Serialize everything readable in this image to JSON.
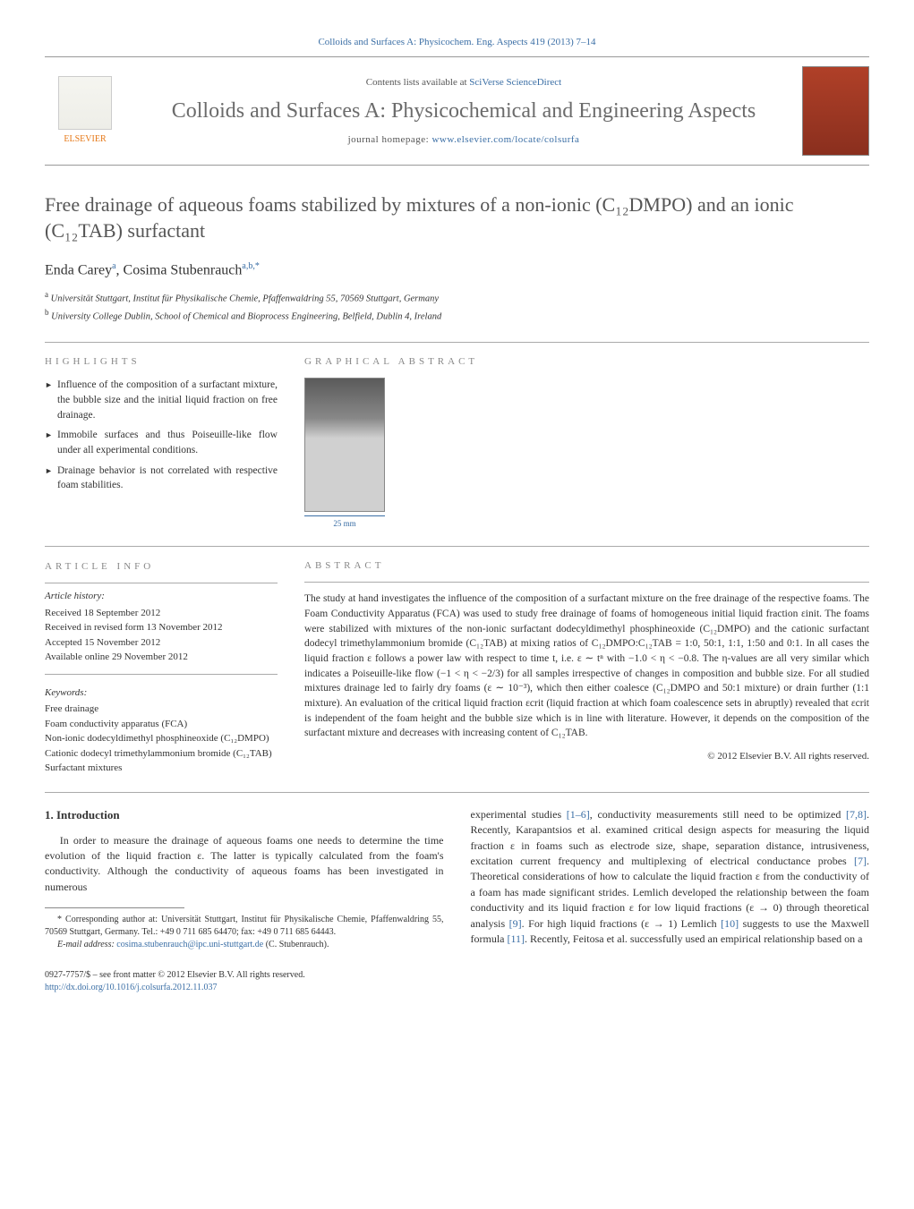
{
  "top_journal_line": "Colloids and Surfaces A: Physicochem. Eng. Aspects 419 (2013) 7–14",
  "header": {
    "contents_prefix": "Contents lists available at ",
    "contents_link": "SciVerse ScienceDirect",
    "journal_title": "Colloids and Surfaces A: Physicochemical and Engineering Aspects",
    "homepage_prefix": "journal homepage: ",
    "homepage_url": "www.elsevier.com/locate/colsurfa",
    "elsevier_label": "ELSEVIER"
  },
  "article_title": "Free drainage of aqueous foams stabilized by mixtures of a non-ionic (C₁₂DMPO) and an ionic (C₁₂TAB) surfactant",
  "authors_html": "Enda Carey",
  "author_a_sup": "a",
  "author_sep": ", ",
  "author2": "Cosima Stubenrauch",
  "author_b_sup": "a,b,*",
  "affiliations": {
    "a": "Universität Stuttgart, Institut für Physikalische Chemie, Pfaffenwaldring 55, 70569 Stuttgart, Germany",
    "b": "University College Dublin, School of Chemical and Bioprocess Engineering, Belfield, Dublin 4, Ireland"
  },
  "highlights_label": "HIGHLIGHTS",
  "highlights": [
    "Influence of the composition of a surfactant mixture, the bubble size and the initial liquid fraction on free drainage.",
    "Immobile surfaces and thus Poiseuille-like flow under all experimental conditions.",
    "Drainage behavior is not correlated with respective foam stabilities."
  ],
  "ga_label": "GRAPHICAL ABSTRACT",
  "ga_caption": "25 mm",
  "article_info_label": "ARTICLE INFO",
  "article_history_heading": "Article history:",
  "article_history": [
    "Received 18 September 2012",
    "Received in revised form 13 November 2012",
    "Accepted 15 November 2012",
    "Available online 29 November 2012"
  ],
  "keywords_heading": "Keywords:",
  "keywords": [
    "Free drainage",
    "Foam conductivity apparatus (FCA)",
    "Non-ionic dodecyldimethyl phosphineoxide (C₁₂DMPO)",
    "Cationic dodecyl trimethylammonium bromide (C₁₂TAB)",
    "Surfactant mixtures"
  ],
  "abstract_label": "ABSTRACT",
  "abstract_text": "The study at hand investigates the influence of the composition of a surfactant mixture on the free drainage of the respective foams. The Foam Conductivity Apparatus (FCA) was used to study free drainage of foams of homogeneous initial liquid fraction εinit. The foams were stabilized with mixtures of the non-ionic surfactant dodecyldimethyl phosphineoxide (C₁₂DMPO) and the cationic surfactant dodecyl trimethylammonium bromide (C₁₂TAB) at mixing ratios of C₁₂DMPO:C₁₂TAB = 1:0, 50:1, 1:1, 1:50 and 0:1. In all cases the liquid fraction ε follows a power law with respect to time t, i.e. ε ∼ tⁿ with −1.0 < η < −0.8. The η-values are all very similar which indicates a Poiseuille-like flow (−1 < η < −2/3) for all samples irrespective of changes in composition and bubble size. For all studied mixtures drainage led to fairly dry foams (ε ∼ 10⁻³), which then either coalesce (C₁₂DMPO and 50:1 mixture) or drain further (1:1 mixture). An evaluation of the critical liquid fraction εcrit (liquid fraction at which foam coalescence sets in abruptly) revealed that εcrit is independent of the foam height and the bubble size which is in line with literature. However, it depends on the composition of the surfactant mixture and decreases with increasing content of C₁₂TAB.",
  "copyright": "© 2012 Elsevier B.V. All rights reserved.",
  "intro_heading": "1.  Introduction",
  "intro_col1": "In order to measure the drainage of aqueous foams one needs to determine the time evolution of the liquid fraction ε. The latter is typically calculated from the foam's conductivity. Although the conductivity of aqueous foams has been investigated in numerous",
  "corr_footnote": "* Corresponding author at: Universität Stuttgart, Institut für Physikalische Chemie, Pfaffenwaldring 55, 70569 Stuttgart, Germany. Tel.: +49 0 711 685 64470; fax: +49 0 711 685 64443.",
  "email_label": "E-mail address: ",
  "email": "cosima.stubenrauch@ipc.uni-stuttgart.de",
  "email_who": " (C. Stubenrauch).",
  "intro_col2_a": "experimental studies ",
  "ref_1_6": "[1–6]",
  "intro_col2_b": ", conductivity measurements still need to be optimized ",
  "ref_7_8": "[7,8]",
  "intro_col2_c": ". Recently, Karapantsios et al. examined critical design aspects for measuring the liquid fraction ε in foams such as electrode size, shape, separation distance, intrusiveness, excitation current frequency and multiplexing of electrical conductance probes ",
  "ref_7": "[7]",
  "intro_col2_d": ". Theoretical considerations of how to calculate the liquid fraction ε from the conductivity of a foam has made significant strides. Lemlich developed the relationship between the foam conductivity and its liquid fraction ε for low liquid fractions (ε → 0) through theoretical analysis ",
  "ref_9": "[9]",
  "intro_col2_e": ". For high liquid fractions (ε → 1) Lemlich ",
  "ref_10": "[10]",
  "intro_col2_f": " suggests to use the Maxwell formula ",
  "ref_11": "[11]",
  "intro_col2_g": ". Recently, Feitosa et al. successfully used an empirical relationship based on a",
  "doi_prefix": "0927-7757/$ – see front matter © 2012 Elsevier B.V. All rights reserved.",
  "doi_url": "http://dx.doi.org/10.1016/j.colsurfa.2012.11.037"
}
